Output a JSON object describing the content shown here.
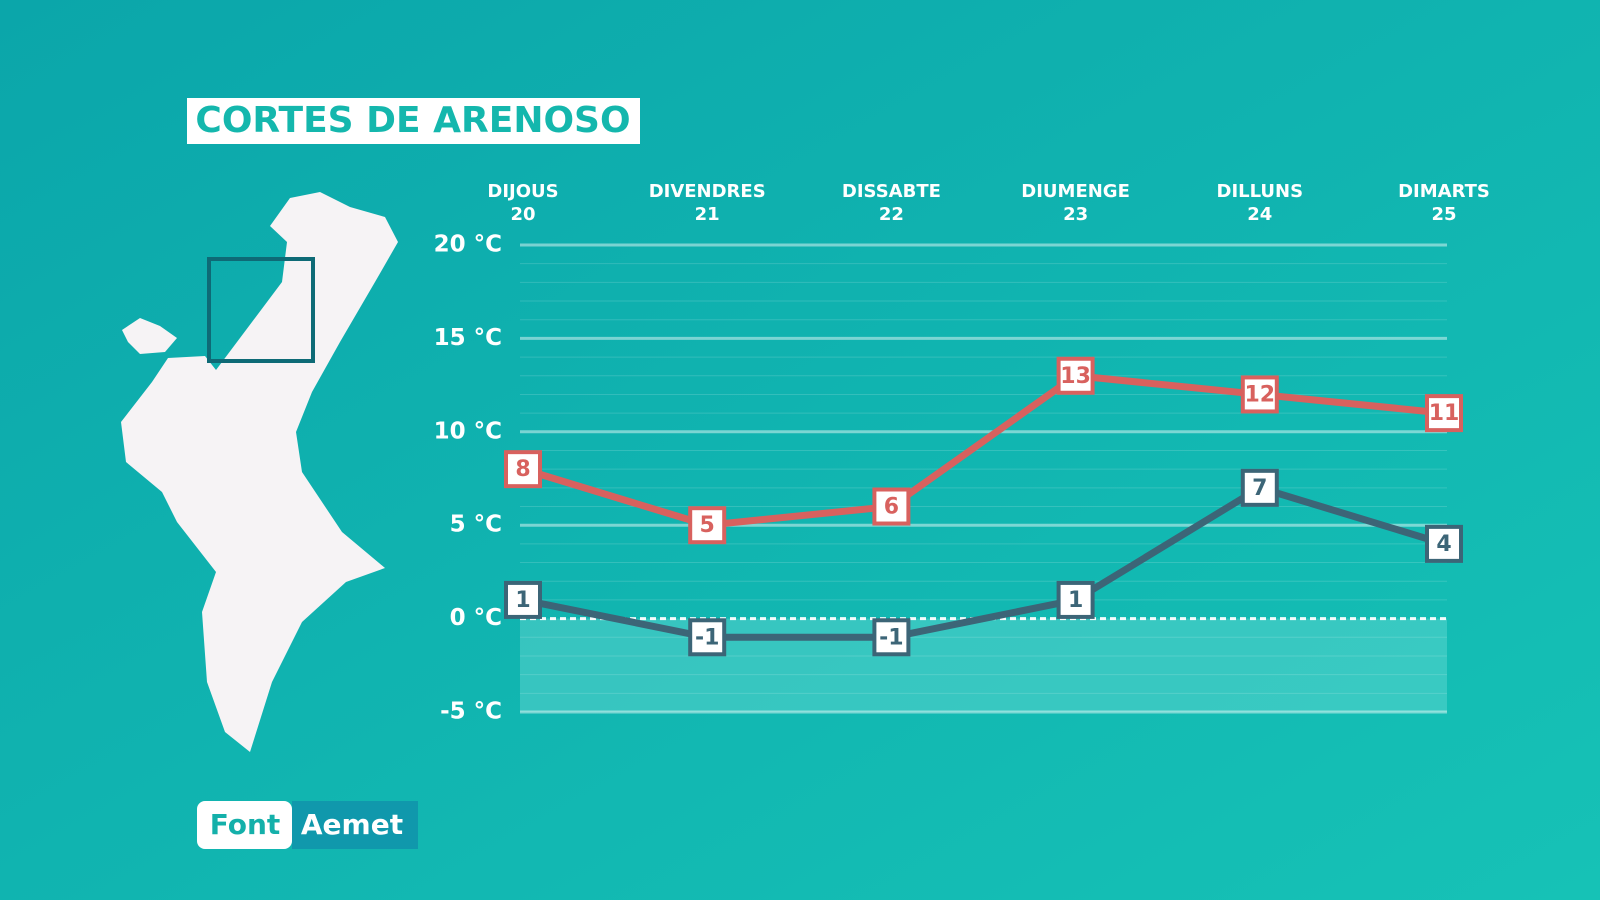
{
  "chart_data": {
    "type": "line",
    "title": "CORTES DE ARENOSO",
    "categories": [
      "DIJOUS",
      "DIVENDRES",
      "DISSABTE",
      "DIUMENGE",
      "DILLUNS",
      "DIMARTS"
    ],
    "dates": [
      20,
      21,
      22,
      23,
      24,
      25
    ],
    "series": [
      {
        "color": "#d8615e",
        "values": [
          8,
          5,
          6,
          13,
          12,
          11
        ]
      },
      {
        "color": "#3c6577",
        "values": [
          1,
          -1,
          -1,
          1,
          7,
          4
        ]
      }
    ],
    "ylim": [
      -5,
      20
    ],
    "yticks": [
      {
        "value": -5,
        "label": "-5 °C"
      },
      {
        "value": 0,
        "label": "0 °C"
      },
      {
        "value": 5,
        "label": "5 °C"
      },
      {
        "value": 10,
        "label": "10 °C"
      },
      {
        "value": 15,
        "label": "15 °C"
      },
      {
        "value": 20,
        "label": "20 °C"
      }
    ],
    "grid": true,
    "source_label": "Font",
    "source": "Aemet"
  }
}
